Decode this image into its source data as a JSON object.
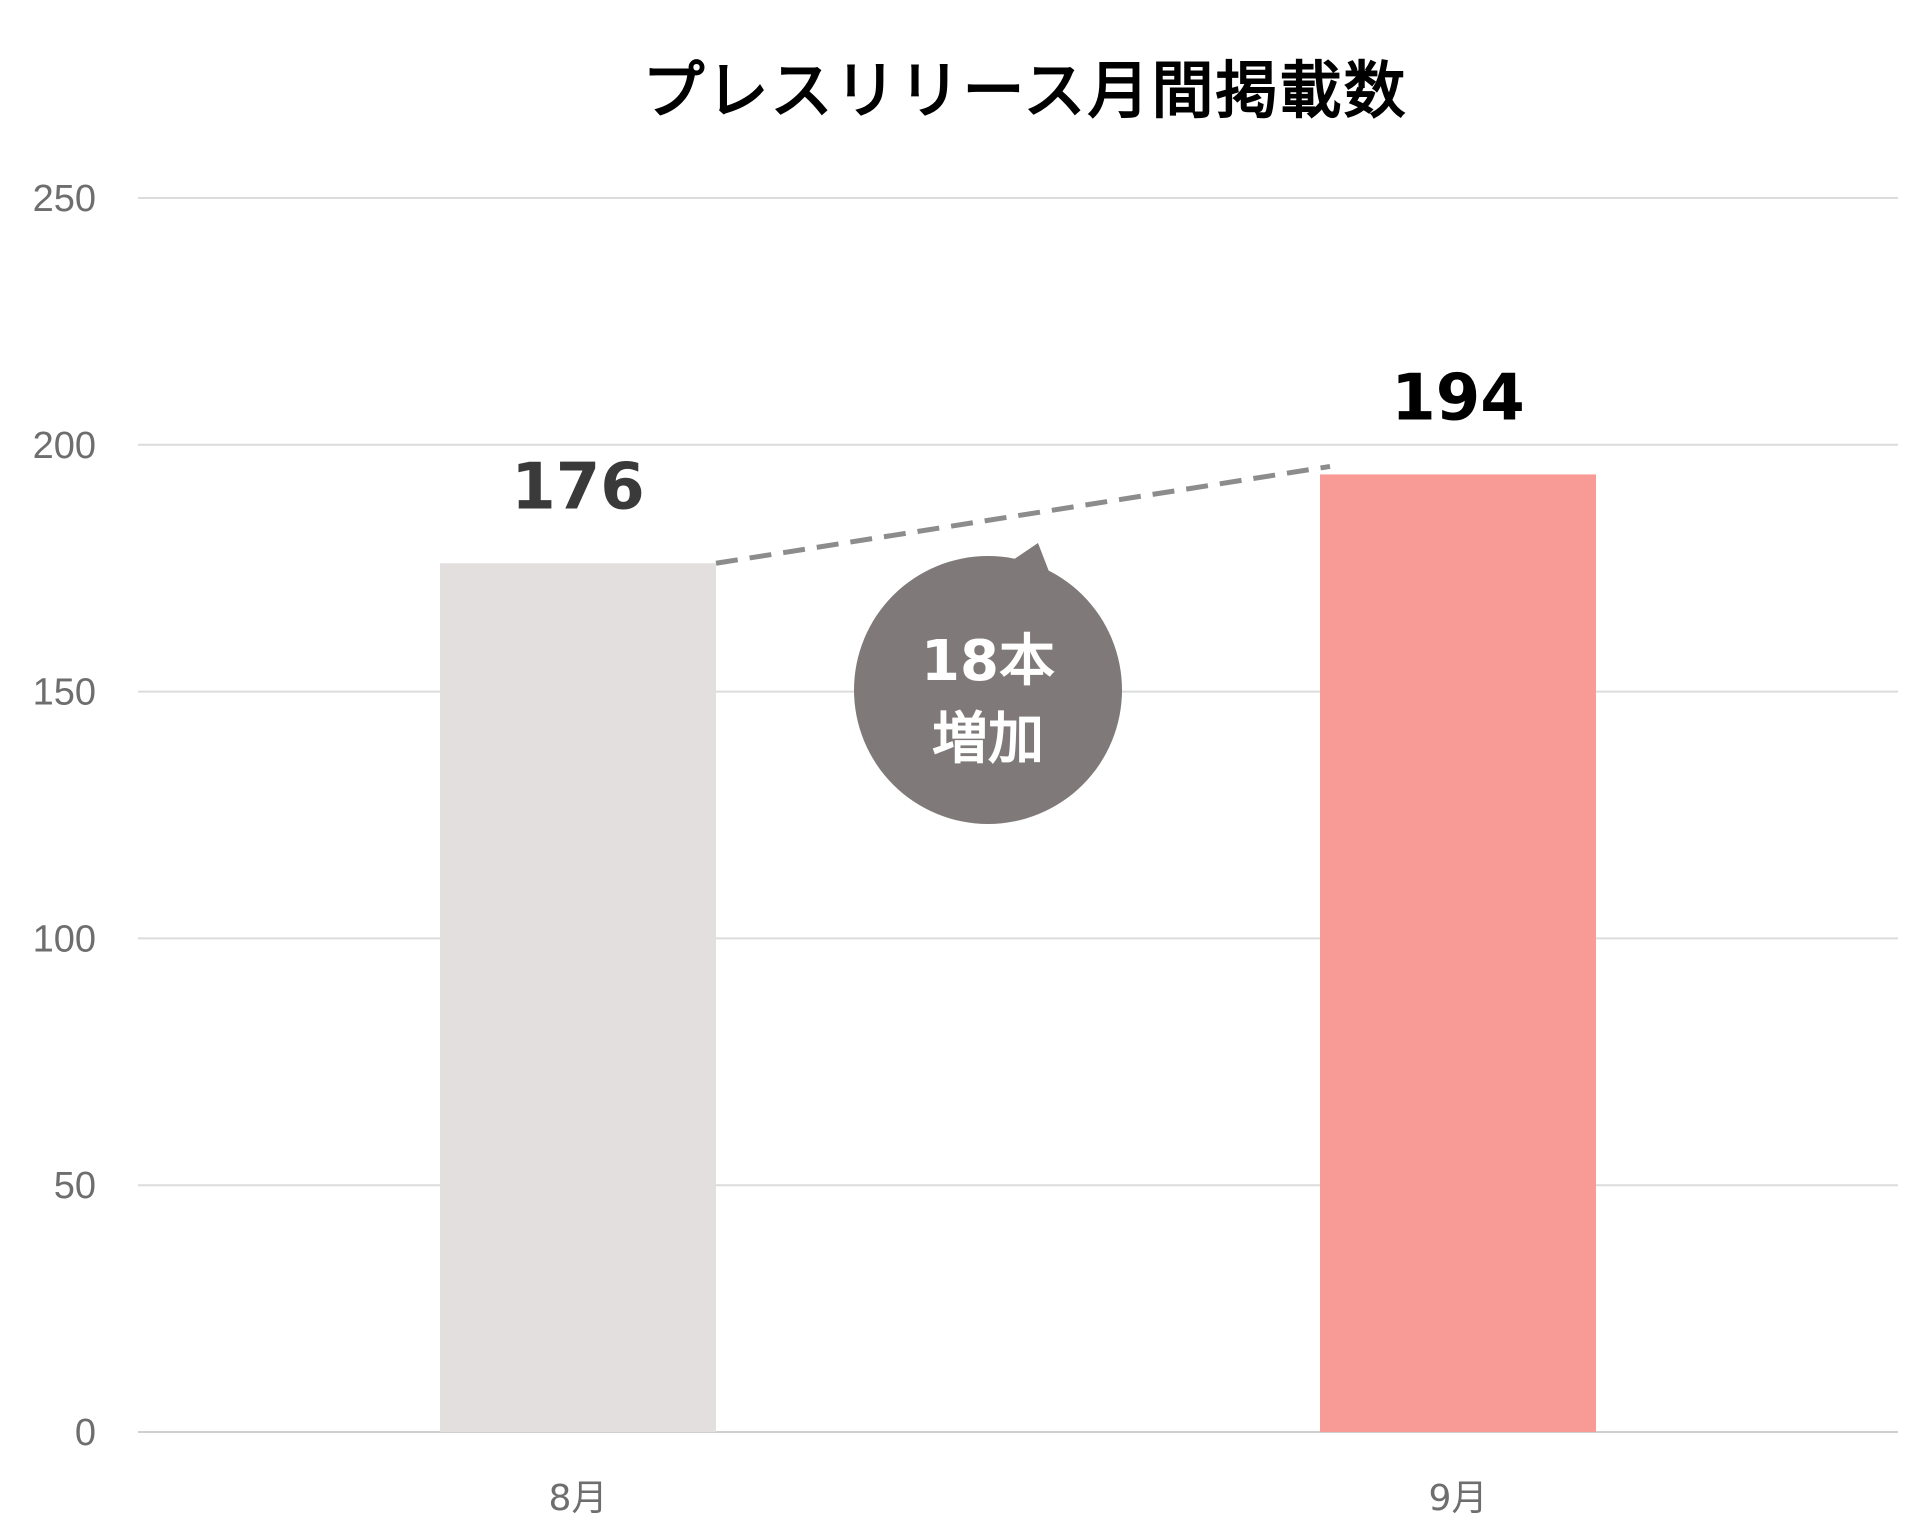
{
  "chart_data": {
    "type": "bar",
    "title": "プレスリリース月間掲載数",
    "categories": [
      "8月",
      "9月"
    ],
    "values": [
      176,
      194
    ],
    "ylim": [
      0,
      250
    ],
    "yticks": [
      0,
      50,
      100,
      150,
      200,
      250
    ],
    "value_labels": [
      "176",
      "194"
    ],
    "bar_colors": [
      "#e2dfde",
      "#f89a95"
    ],
    "value_label_colors": [
      "#3a3a3a",
      "#000000"
    ],
    "grid": true,
    "legend": "none",
    "annotation": {
      "lines": [
        "18本",
        "増加"
      ],
      "connector": "dashed line from top of 8月 bar to top of 9月 bar",
      "color": "#7f7a79"
    }
  }
}
